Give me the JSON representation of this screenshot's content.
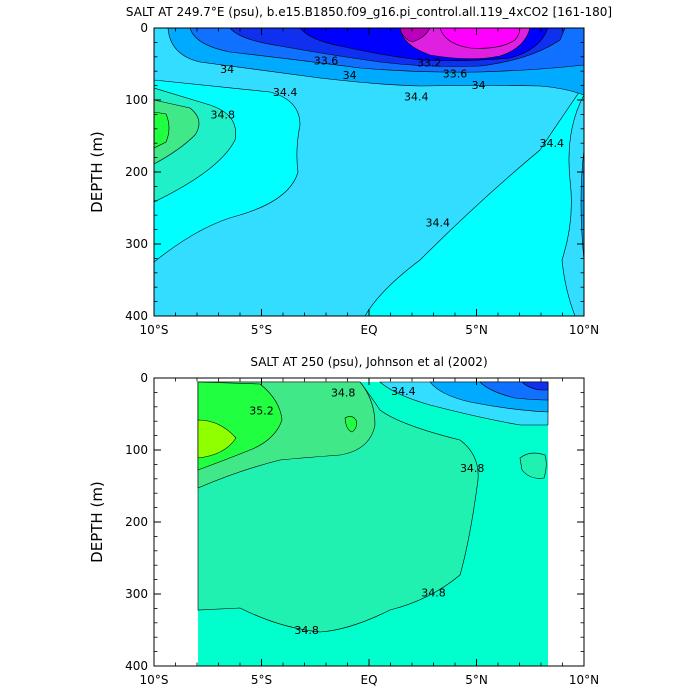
{
  "chart_data": [
    {
      "type": "contour",
      "title": "SALT AT 249.7°E (psu), b.e15.B1850.f09_g16.pi_control.all.119_4xCO2 [161-180]",
      "ylabel": "DEPTH (m)",
      "xlim": [
        -10,
        10
      ],
      "ylim": [
        400,
        0
      ],
      "x_ticks": [
        -10,
        -5,
        0,
        5,
        10
      ],
      "x_tick_labels": [
        "10°S",
        "5°S",
        "EQ",
        "5°N",
        "10°N"
      ],
      "y_ticks": [
        0,
        100,
        200,
        300,
        400
      ],
      "y_tick_labels": [
        "0",
        "100",
        "200",
        "300",
        "400"
      ],
      "contour_labels": [
        {
          "text": "33.6",
          "x": -2.0,
          "y": 45
        },
        {
          "text": "33.2",
          "x": 2.8,
          "y": 48
        },
        {
          "text": "34",
          "x": -6.6,
          "y": 57
        },
        {
          "text": "34",
          "x": -0.9,
          "y": 65
        },
        {
          "text": "33.6",
          "x": 4.0,
          "y": 63
        },
        {
          "text": "34",
          "x": 5.1,
          "y": 79
        },
        {
          "text": "34.4",
          "x": -3.9,
          "y": 89
        },
        {
          "text": "34.4",
          "x": 2.2,
          "y": 95
        },
        {
          "text": "34.8",
          "x": -6.8,
          "y": 120
        },
        {
          "text": "34.4",
          "x": 8.5,
          "y": 160
        },
        {
          "text": "34.4",
          "x": 3.2,
          "y": 270
        }
      ],
      "fill_colors": [
        "#bb00bb",
        "#e020e0",
        "#ff00ff",
        "#0000ff",
        "#1030f0",
        "#1070ff",
        "#00aaff",
        "#33ddff",
        "#00ffff",
        "#20f0c8",
        "#40e888",
        "#20ff40",
        "#90ff00"
      ]
    },
    {
      "type": "contour",
      "title": "SALT AT 250 (psu), Johnson et al (2002)",
      "ylabel": "DEPTH (m)",
      "xlim": [
        -10,
        10
      ],
      "ylim": [
        400,
        0
      ],
      "data_extent_x": [
        -8,
        8.2
      ],
      "data_extent_y": [
        5,
        400
      ],
      "x_ticks": [
        -10,
        -5,
        0,
        5,
        10
      ],
      "x_tick_labels": [
        "10°S",
        "5°S",
        "EQ",
        "5°N",
        "10°N"
      ],
      "y_ticks": [
        0,
        100,
        200,
        300,
        400
      ],
      "y_tick_labels": [
        "0",
        "100",
        "200",
        "300",
        "400"
      ],
      "contour_labels": [
        {
          "text": "35.2",
          "x": -5.0,
          "y": 45
        },
        {
          "text": "34.8",
          "x": -1.2,
          "y": 20
        },
        {
          "text": "34.4",
          "x": 1.6,
          "y": 18
        },
        {
          "text": "34.8",
          "x": 4.8,
          "y": 125
        },
        {
          "text": "34.8",
          "x": 3.0,
          "y": 298
        },
        {
          "text": "34.8",
          "x": -2.9,
          "y": 350
        }
      ]
    }
  ]
}
